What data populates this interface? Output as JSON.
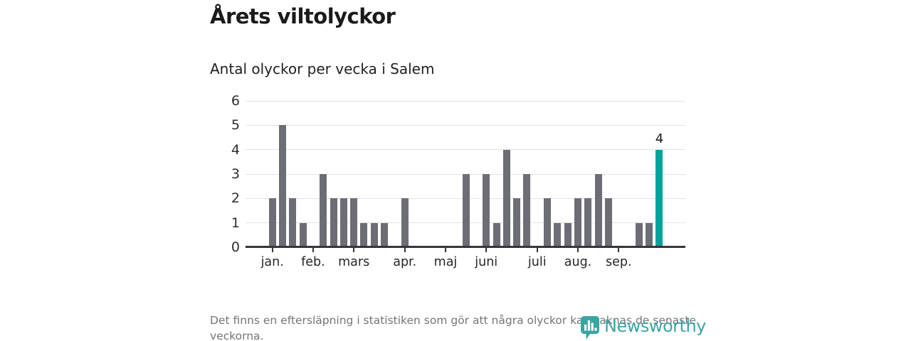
{
  "title": "Årets viltolyckor",
  "subtitle": "Antal olyckor per vecka i Salem",
  "footer": {
    "disclaimer": "Det finns en eftersläpning i statistiken som gör att några olyckor kan saknas de senaste veckorna.",
    "brand": "Newsworthy",
    "brand_icon": "newsworthy-bubble-barchart-icon"
  },
  "colors": {
    "bar_default": "#6d6d75",
    "bar_highlight": "#00a29b",
    "axis_line": "#36363b",
    "gridline": "#e3e3e5",
    "title_text": "#1a1a1a",
    "axis_text": "#2e2e33",
    "muted_text": "#74747a",
    "brand_teal": "#3aa5a3"
  },
  "chart_data": {
    "type": "bar",
    "title": "Årets viltolyckor",
    "subtitle": "Antal olyckor per vecka i Salem",
    "xlabel": "",
    "ylabel": "",
    "x_unit": "vecka",
    "values": [
      2,
      5,
      2,
      1,
      0,
      3,
      2,
      2,
      2,
      1,
      1,
      1,
      0,
      2,
      0,
      0,
      0,
      0,
      0,
      3,
      0,
      3,
      1,
      4,
      2,
      3,
      0,
      2,
      1,
      1,
      2,
      2,
      3,
      2,
      0,
      0,
      1,
      1,
      4
    ],
    "highlight_index": 38,
    "highlight_value_label": "4",
    "ylim": [
      0,
      6
    ],
    "y_ticks": [
      0,
      1,
      2,
      3,
      4,
      5,
      6
    ],
    "x_tick_labels": [
      "jan.",
      "feb.",
      "mars",
      "apr.",
      "maj",
      "juni",
      "juli",
      "aug.",
      "sep."
    ],
    "x_tick_week_indices": [
      0,
      4,
      8,
      13,
      17,
      21,
      26,
      30,
      34
    ],
    "grid": true,
    "legend": false
  }
}
